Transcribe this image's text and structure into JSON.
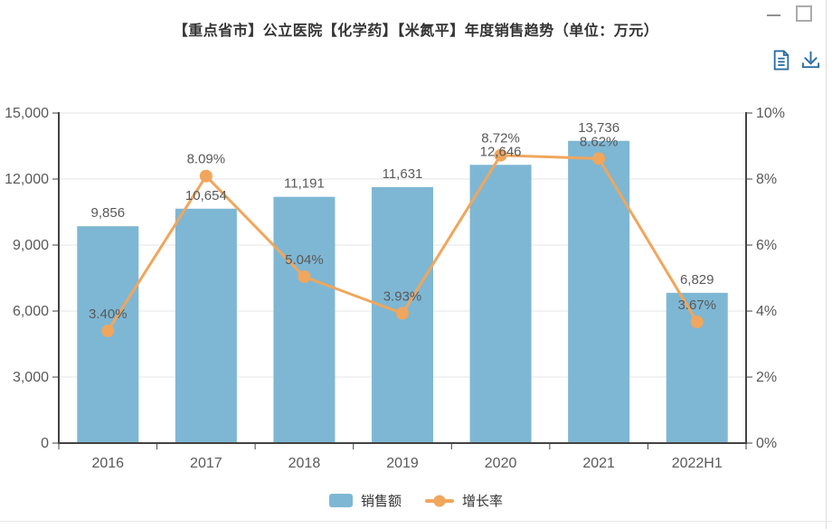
{
  "window": {
    "minimize_label": "minimize",
    "maximize_label": "maximize"
  },
  "toolbar": {
    "icon_color": "#2B6CA3",
    "icons": [
      {
        "name": "report-icon"
      },
      {
        "name": "download-icon"
      }
    ]
  },
  "chart_data": {
    "type": "bar+line combo",
    "title": "【重点省市】公立医院【化学药】【米氮平】年度销售趋势（单位：万元）",
    "categories": [
      "2016",
      "2017",
      "2018",
      "2019",
      "2020",
      "2021",
      "2022H1"
    ],
    "series": [
      {
        "name": "销售额",
        "type": "bar",
        "axis": "left",
        "color": "#7EB7D4",
        "values": [
          9856,
          10654,
          11191,
          11631,
          12646,
          13736,
          6829
        ],
        "labels": [
          "9,856",
          "10,654",
          "11,191",
          "11,631",
          "12,646",
          "13,736",
          "6,829"
        ]
      },
      {
        "name": "增长率",
        "type": "line",
        "axis": "right",
        "color": "#F0A65C",
        "values": [
          3.4,
          8.09,
          5.04,
          3.93,
          8.72,
          8.62,
          3.67
        ],
        "labels": [
          "3.40%",
          "8.09%",
          "5.04%",
          "3.93%",
          "8.72%",
          "8.62%",
          "3.67%"
        ]
      }
    ],
    "left_axis": {
      "min": 0,
      "max": 15000,
      "ticks": [
        "0",
        "3,000",
        "6,000",
        "9,000",
        "12,000",
        "15,000"
      ]
    },
    "right_axis": {
      "min": 0,
      "max": 10,
      "ticks": [
        "0%",
        "2%",
        "4%",
        "6%",
        "8%",
        "10%"
      ]
    },
    "grid": true,
    "legend_position": "bottom",
    "colors": {
      "axis": "#424242",
      "grid": "#E4E4E4",
      "tick_label": "#595959",
      "data_label": "#595959"
    }
  }
}
